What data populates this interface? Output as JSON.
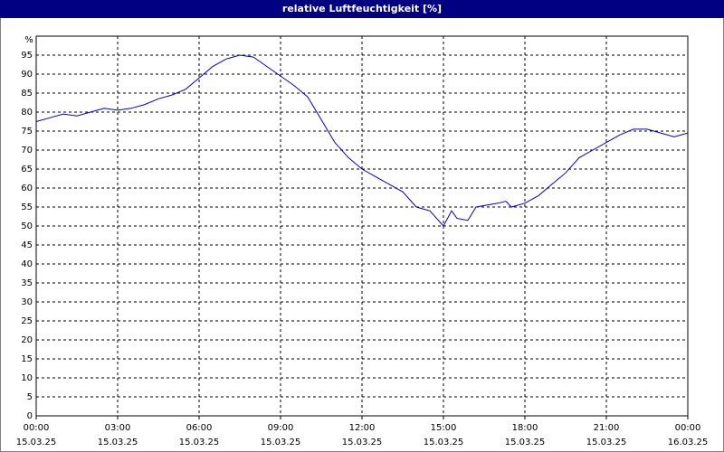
{
  "chart_data": {
    "type": "line",
    "title": "relative Luftfeuchtigkeit [%]",
    "y_label": "%",
    "x": [
      0,
      0.5,
      1,
      1.5,
      2,
      2.5,
      3,
      3.5,
      4,
      4.5,
      5,
      5.5,
      6,
      6.5,
      7,
      7.5,
      8,
      8.5,
      9,
      9.5,
      10,
      10.5,
      11,
      11.5,
      12,
      12.5,
      13,
      13.5,
      14,
      14.5,
      15,
      15.3,
      15.5,
      15.9,
      16.2,
      17,
      17.3,
      17.5,
      18,
      18.5,
      19,
      19.5,
      20,
      20.5,
      21,
      21.5,
      22,
      22.5,
      23,
      23.5,
      24
    ],
    "series": [
      {
        "name": "relative Luftfeuchtigkeit",
        "color": "#0000c8",
        "values": [
          77.5,
          78.5,
          79.5,
          79,
          80,
          81,
          80.5,
          81,
          82,
          83.5,
          84.5,
          86,
          89,
          92,
          94,
          95,
          94.5,
          92,
          89.5,
          87,
          84,
          78,
          72,
          68,
          65,
          63,
          61,
          59,
          55,
          54,
          50,
          54,
          52,
          51.5,
          55,
          56,
          56.5,
          55,
          56,
          58,
          61,
          64,
          68,
          70,
          72,
          74,
          75.5,
          75.5,
          74.5,
          73.5,
          74.5
        ]
      }
    ],
    "xlim": [
      0,
      24
    ],
    "xticks": [
      {
        "value": 0,
        "label": "00:00"
      },
      {
        "value": 3,
        "label": "03:00"
      },
      {
        "value": 6,
        "label": "06:00"
      },
      {
        "value": 9,
        "label": "09:00"
      },
      {
        "value": 12,
        "label": "12:00"
      },
      {
        "value": 15,
        "label": "15:00"
      },
      {
        "value": 18,
        "label": "18:00"
      },
      {
        "value": 21,
        "label": "21:00"
      },
      {
        "value": 24,
        "label": "00:00"
      }
    ],
    "xtick_dates": [
      "15.03.25",
      "15.03.25",
      "15.03.25",
      "15.03.25",
      "15.03.25",
      "15.03.25",
      "15.03.25",
      "15.03.25",
      "16.03.25"
    ],
    "ylim": [
      0,
      100
    ],
    "yticks": [
      0,
      5,
      10,
      15,
      20,
      25,
      30,
      35,
      40,
      45,
      50,
      55,
      60,
      65,
      70,
      75,
      80,
      85,
      90,
      95
    ],
    "grid": true
  }
}
